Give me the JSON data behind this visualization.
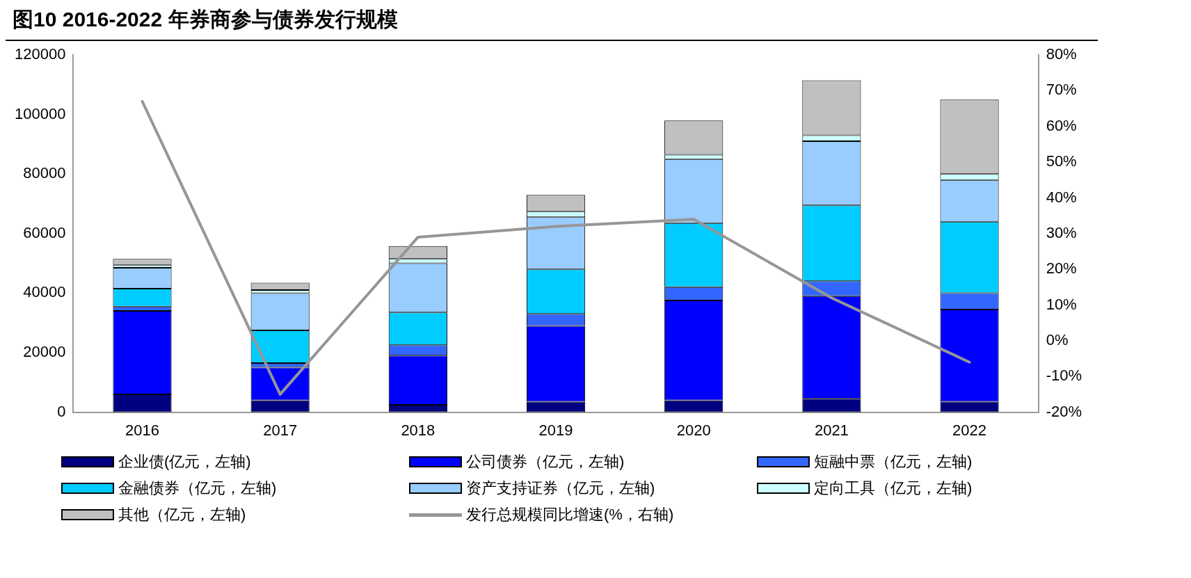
{
  "chart_data": {
    "type": "bar",
    "title": "图10 2016-2022 年券商参与债券发行规模",
    "stacked": true,
    "legend": "bottom",
    "marker": "none",
    "categories": [
      "2016",
      "2017",
      "2018",
      "2019",
      "2020",
      "2021",
      "2022"
    ],
    "series": [
      {
        "name": "企业债(亿元，左轴)",
        "color": "#000080",
        "values": [
          6000,
          4000,
          2500,
          3500,
          4000,
          4500,
          3500
        ]
      },
      {
        "name": "公司债券（亿元，左轴)",
        "color": "#0000ff",
        "values": [
          28000,
          11000,
          16500,
          25500,
          33500,
          34500,
          31000
        ]
      },
      {
        "name": "短融中票（亿元，左轴)",
        "color": "#3366ff",
        "values": [
          1500,
          1500,
          3500,
          4000,
          4500,
          5000,
          5500
        ]
      },
      {
        "name": "金融债券（亿元，左轴)",
        "color": "#00ccff",
        "values": [
          6000,
          11000,
          11000,
          15000,
          21500,
          25500,
          24000
        ]
      },
      {
        "name": "资产支持证券（亿元，左轴)",
        "color": "#99ccff",
        "values": [
          7000,
          12500,
          16500,
          17500,
          21500,
          21500,
          14000
        ]
      },
      {
        "name": "定向工具（亿元，左轴)",
        "color": "#ccffff",
        "values": [
          1000,
          1000,
          1500,
          2000,
          1500,
          2000,
          2000
        ]
      },
      {
        "name": "其他（亿元，左轴)",
        "color": "#c0c0c0",
        "values": [
          2000,
          2500,
          4300,
          5500,
          11500,
          18500,
          25000
        ]
      },
      {
        "name": "发行总规模同比增速(%，右轴)",
        "type": "line",
        "axis": "y2",
        "color": "#969696",
        "values": [
          67,
          -15,
          29,
          32,
          34,
          12,
          -6
        ]
      }
    ],
    "ylim": [
      0,
      120000
    ],
    "yticks": [
      0,
      20000,
      40000,
      60000,
      80000,
      100000,
      120000
    ],
    "y2lim": [
      -20,
      80
    ],
    "y2ticks": [
      {
        "value": -20,
        "label": "-20%"
      },
      {
        "value": -10,
        "label": "-10%"
      },
      {
        "value": 0,
        "label": "0%"
      },
      {
        "value": 10,
        "label": "10%"
      },
      {
        "value": 20,
        "label": "20%"
      },
      {
        "value": 30,
        "label": "30%"
      },
      {
        "value": 40,
        "label": "40%"
      },
      {
        "value": 50,
        "label": "50%"
      },
      {
        "value": 60,
        "label": "60%"
      },
      {
        "value": 70,
        "label": "70%"
      },
      {
        "value": 80,
        "label": "80%"
      }
    ]
  }
}
